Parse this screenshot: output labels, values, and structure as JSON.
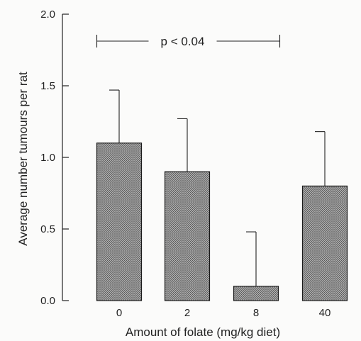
{
  "chart_data": {
    "type": "bar",
    "categories": [
      "0",
      "2",
      "8",
      "40"
    ],
    "values": [
      1.1,
      0.9,
      0.1,
      0.8
    ],
    "error_upper": [
      1.47,
      1.27,
      0.48,
      1.18
    ],
    "title": "",
    "xlabel": "Amount of folate (mg/kg diet)",
    "ylabel": "Average number tumours per rat",
    "ylim": [
      0,
      2.0
    ],
    "yticks": [
      "0.0",
      "0.5",
      "1.0",
      "1.5",
      "2.0"
    ],
    "grid": false,
    "annotation": {
      "text": "p < 0.04",
      "from_category": "0",
      "to_category": "8"
    },
    "colors": {
      "bar_fill": "#9a9a9a",
      "bar_stroke": "#1a1a1a",
      "axis": "#222222"
    }
  }
}
